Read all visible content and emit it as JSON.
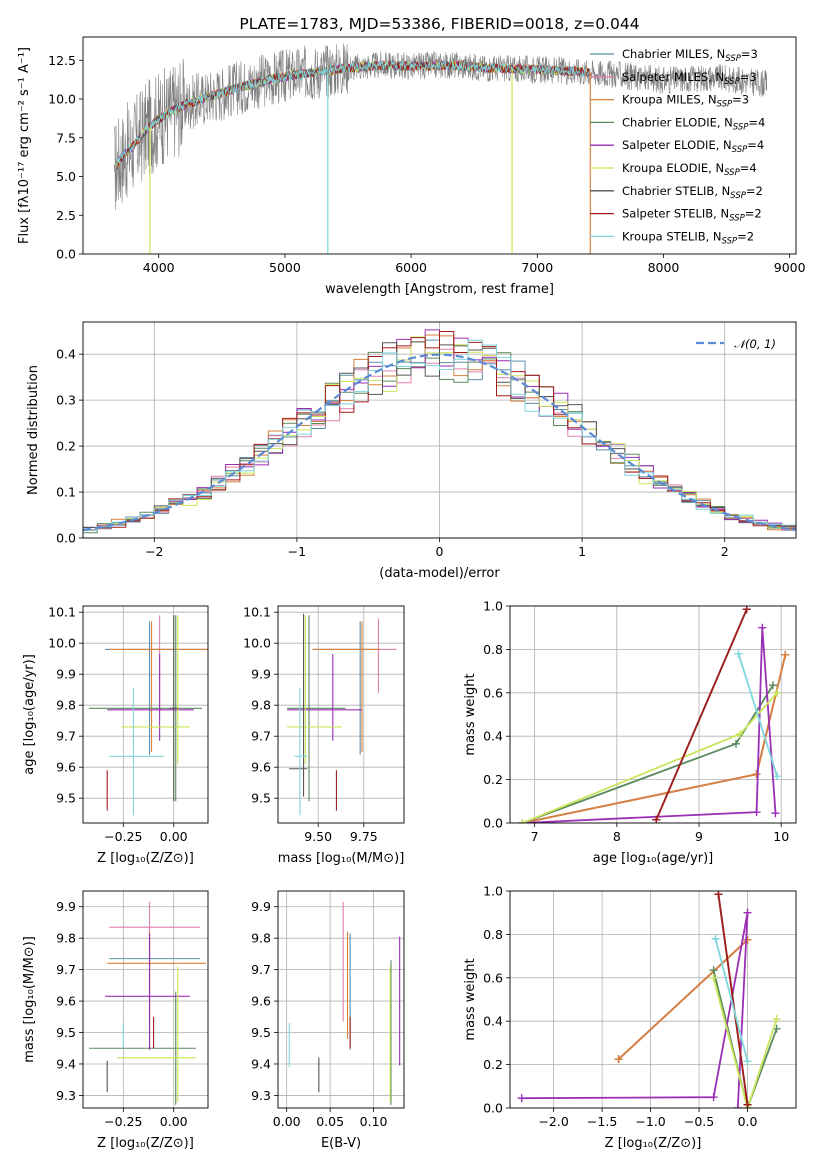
{
  "colors": {
    "chab_miles": "#5b8fa8",
    "salp_miles": "#e07fb0",
    "krou_miles": "#d9813a",
    "chab_elodie": "#5a8a5e",
    "salp_elodie": "#9a2fb5",
    "krou_elodie": "#c8e65a",
    "chab_stelib": "#555555",
    "salp_stelib": "#a21c1c",
    "krou_stelib": "#7fd6dc",
    "gauss": "#5b8bd6",
    "grid": "#b0b0b0"
  },
  "chart_data": [
    {
      "id": "spectrum",
      "type": "line",
      "title": "PLATE=1783, MJD=53386, FIBERID=0018, z=0.044",
      "xlabel": "wavelength [Angstrom, rest frame]",
      "ylabel": "Flux [fλ10⁻¹⁷ erg cm⁻² s⁻¹ A⁻¹]",
      "xlim": [
        3400,
        9050
      ],
      "ylim": [
        0,
        14
      ],
      "xticks": [
        4000,
        5000,
        6000,
        7000,
        8000,
        9000
      ],
      "yticks": [
        "0.0",
        "2.5",
        "5.0",
        "7.5",
        "10.0",
        "12.5"
      ],
      "legend_position": "top-right",
      "legend": [
        {
          "label": "Chabrier MILES, N",
          "sub": "SSP",
          "suffix": "=3",
          "color": "chab_miles"
        },
        {
          "label": "Salpeter MILES, N",
          "sub": "SSP",
          "suffix": "=3",
          "color": "salp_miles"
        },
        {
          "label": "Kroupa MILES, N",
          "sub": "SSP",
          "suffix": "=3",
          "color": "krou_miles"
        },
        {
          "label": "Chabrier ELODIE, N",
          "sub": "SSP",
          "suffix": "=4",
          "color": "chab_elodie"
        },
        {
          "label": "Salpeter ELODIE, N",
          "sub": "SSP",
          "suffix": "=4",
          "color": "salp_elodie"
        },
        {
          "label": "Kroupa ELODIE, N",
          "sub": "SSP",
          "suffix": "=4",
          "color": "krou_elodie"
        },
        {
          "label": "Chabrier STELIB, N",
          "sub": "SSP",
          "suffix": "=2",
          "color": "chab_stelib"
        },
        {
          "label": "Salpeter STELIB, N",
          "sub": "SSP",
          "suffix": "=2",
          "color": "salp_stelib"
        },
        {
          "label": "Kroupa STELIB, N",
          "sub": "SSP",
          "suffix": "=2",
          "color": "krou_stelib"
        }
      ],
      "continuum": [
        [
          3650,
          5.5
        ],
        [
          3700,
          6.2
        ],
        [
          3800,
          7.0
        ],
        [
          3900,
          8.0
        ],
        [
          4000,
          8.7
        ],
        [
          4100,
          9.2
        ],
        [
          4200,
          9.6
        ],
        [
          4300,
          9.9
        ],
        [
          4500,
          10.4
        ],
        [
          4700,
          10.9
        ],
        [
          4900,
          11.3
        ],
        [
          5100,
          11.6
        ],
        [
          5300,
          11.8
        ],
        [
          5500,
          12.0
        ],
        [
          5800,
          12.2
        ],
        [
          6000,
          12.1
        ],
        [
          6300,
          12.2
        ],
        [
          6600,
          12.0
        ],
        [
          7000,
          11.9
        ],
        [
          7300,
          11.8
        ],
        [
          7420,
          11.7
        ],
        [
          7600,
          11.6
        ],
        [
          8000,
          11.2
        ],
        [
          8400,
          11.4
        ],
        [
          8800,
          11.0
        ]
      ],
      "model_extent": [
        3650,
        7420
      ],
      "data_extent": [
        3650,
        8820
      ],
      "dips": [
        {
          "x": 5340,
          "color": "krou_stelib"
        },
        {
          "x": 6800,
          "color": "krou_elodie"
        },
        {
          "x": 7420,
          "color": "krou_miles"
        },
        {
          "x": 3930,
          "color": "krou_elodie"
        }
      ]
    },
    {
      "id": "residuals",
      "type": "histogram",
      "xlabel": "(data-model)/error",
      "ylabel": "Normed distribution",
      "xlim": [
        -2.5,
        2.5
      ],
      "ylim": [
        0,
        0.47
      ],
      "xticks": [
        "−2",
        "−1",
        "0",
        "1",
        "2"
      ],
      "yticks": [
        "0.0",
        "0.1",
        "0.2",
        "0.3",
        "0.4"
      ],
      "legend_position": "top-right",
      "gauss_label": "𝒩(0, 1)",
      "bins": 50
    },
    {
      "id": "age_vs_z",
      "type": "errorbar",
      "xlabel": "Z [log₁₀(Z/Z⊙)]",
      "ylabel": "age  [log₁₀(age/yr)]",
      "xlim": [
        -0.45,
        0.17
      ],
      "ylim": [
        9.42,
        10.12
      ],
      "xticks": [
        "−0.25",
        "0.00"
      ],
      "yticks": [
        "9.5",
        "9.6",
        "9.7",
        "9.8",
        "9.9",
        "10.0",
        "10.1"
      ],
      "points": [
        {
          "c": "chab_miles",
          "x": -0.12,
          "y": 9.98,
          "xerr": [
            0.22,
            0.32
          ],
          "yerr": [
            0.34,
            0.09
          ]
        },
        {
          "c": "salp_miles",
          "x": -0.07,
          "y": 9.98,
          "xerr": [
            0.18,
            0.28
          ],
          "yerr": [
            0.2,
            0.11
          ]
        },
        {
          "c": "krou_miles",
          "x": -0.11,
          "y": 9.98,
          "xerr": [
            0.21,
            0.32
          ],
          "yerr": [
            0.33,
            0.09
          ]
        },
        {
          "c": "chab_elodie",
          "x": 0.01,
          "y": 9.79,
          "xerr": [
            0.43,
            0.13
          ],
          "yerr": [
            0.3,
            0.3
          ]
        },
        {
          "c": "salp_elodie",
          "x": -0.07,
          "y": 9.785,
          "xerr": [
            0.26,
            0.17
          ],
          "yerr": [
            0.1,
            0.18
          ]
        },
        {
          "c": "krou_elodie",
          "x": 0.02,
          "y": 9.73,
          "xerr": [
            0.28,
            0.06
          ],
          "yerr": [
            0.12,
            0.36
          ]
        },
        {
          "c": "chab_stelib",
          "x": 0.0,
          "y": 9.79,
          "xerr": [
            0.02,
            0.02
          ],
          "yerr": [
            0.3,
            0.3
          ]
        },
        {
          "c": "salp_stelib",
          "x": -0.33,
          "y": 9.53,
          "xerr": [
            0.0,
            0.0
          ],
          "yerr": [
            0.07,
            0.06
          ]
        },
        {
          "c": "krou_stelib",
          "x": -0.2,
          "y": 9.635,
          "xerr": [
            0.12,
            0.15
          ],
          "yerr": [
            0.19,
            0.22
          ]
        }
      ]
    },
    {
      "id": "age_vs_mass",
      "type": "errorbar",
      "xlabel": "mass [log₁₀(M/M⊙)]",
      "ylabel": "",
      "xlim": [
        9.28,
        9.97
      ],
      "ylim": [
        9.42,
        10.12
      ],
      "xticks": [
        "9.50",
        "9.75"
      ],
      "yticks": [
        "9.5",
        "9.6",
        "9.7",
        "9.8",
        "9.9",
        "10.0",
        "10.1"
      ],
      "points": [
        {
          "c": "chab_miles",
          "x": 9.73,
          "y": 9.98,
          "xerr": [
            0.26,
            0.1
          ],
          "yerr": [
            0.34,
            0.09
          ]
        },
        {
          "c": "salp_miles",
          "x": 9.83,
          "y": 9.98,
          "xerr": [
            0.3,
            0.1
          ],
          "yerr": [
            0.14,
            0.1
          ]
        },
        {
          "c": "krou_miles",
          "x": 9.74,
          "y": 9.98,
          "xerr": [
            0.27,
            0.1
          ],
          "yerr": [
            0.33,
            0.09
          ]
        },
        {
          "c": "chab_elodie",
          "x": 9.45,
          "y": 9.79,
          "xerr": [
            0.12,
            0.2
          ],
          "yerr": [
            0.3,
            0.3
          ]
        },
        {
          "c": "salp_elodie",
          "x": 9.58,
          "y": 9.785,
          "xerr": [
            0.25,
            0.16
          ],
          "yerr": [
            0.1,
            0.18
          ]
        },
        {
          "c": "krou_elodie",
          "x": 9.43,
          "y": 9.73,
          "xerr": [
            0.1,
            0.2
          ],
          "yerr": [
            0.12,
            0.36
          ]
        },
        {
          "c": "chab_stelib",
          "x": 9.42,
          "y": 9.595,
          "xerr": [
            0.08,
            0.02
          ],
          "yerr": [
            0.09,
            0.5
          ]
        },
        {
          "c": "salp_stelib",
          "x": 9.6,
          "y": 9.53,
          "xerr": [
            0.0,
            0.0
          ],
          "yerr": [
            0.07,
            0.06
          ]
        },
        {
          "c": "krou_stelib",
          "x": 9.4,
          "y": 9.635,
          "xerr": [
            0.03,
            0.04
          ],
          "yerr": [
            0.19,
            0.22
          ]
        }
      ]
    },
    {
      "id": "weight_vs_age",
      "type": "line",
      "xlabel": "age  [log₁₀(age/yr)]",
      "ylabel": "mass weight",
      "xlim": [
        6.7,
        10.18
      ],
      "ylim": [
        0,
        1.0
      ],
      "xticks": [
        "7",
        "8",
        "9",
        "10"
      ],
      "yticks": [
        "0.0",
        "0.2",
        "0.4",
        "0.6",
        "0.8",
        "1.0"
      ],
      "series": [
        {
          "c": "chab_miles",
          "x": [
            6.85,
            9.7,
            10.05
          ],
          "y": [
            0.0,
            0.225,
            0.775
          ]
        },
        {
          "c": "salp_miles",
          "x": [
            6.85,
            9.7,
            10.05
          ],
          "y": [
            0.0,
            0.225,
            0.775
          ]
        },
        {
          "c": "krou_miles",
          "x": [
            6.85,
            9.7,
            10.05
          ],
          "y": [
            0.0,
            0.225,
            0.775
          ]
        },
        {
          "c": "chab_elodie",
          "x": [
            6.85,
            9.45,
            9.9
          ],
          "y": [
            0.0,
            0.365,
            0.635
          ]
        },
        {
          "c": "salp_elodie",
          "x": [
            6.85,
            9.7,
            9.77,
            9.93
          ],
          "y": [
            0.0,
            0.05,
            0.9,
            0.045
          ]
        },
        {
          "c": "krou_elodie",
          "x": [
            6.85,
            9.5,
            9.95
          ],
          "y": [
            0.0,
            0.41,
            0.6
          ]
        },
        {
          "c": "chab_stelib",
          "x": [
            8.48,
            9.58
          ],
          "y": [
            0.015,
            0.985
          ]
        },
        {
          "c": "salp_stelib",
          "x": [
            8.48,
            9.58
          ],
          "y": [
            0.015,
            0.985
          ]
        },
        {
          "c": "krou_stelib",
          "x": [
            9.48,
            9.95
          ],
          "y": [
            0.78,
            0.215
          ]
        }
      ]
    },
    {
      "id": "mass_vs_z",
      "type": "errorbar",
      "xlabel": "Z [log₁₀(Z/Z⊙)]",
      "ylabel": "mass [log₁₀(M/M⊙)]",
      "xlim": [
        -0.45,
        0.17
      ],
      "ylim": [
        9.26,
        9.95
      ],
      "xticks": [
        "−0.25",
        "0.00"
      ],
      "yticks": [
        "9.3",
        "9.4",
        "9.5",
        "9.6",
        "9.7",
        "9.8",
        "9.9"
      ],
      "points": [
        {
          "c": "chab_miles",
          "x": -0.12,
          "y": 9.735,
          "xerr": [
            0.2,
            0.25
          ],
          "yerr": [
            0.29,
            0.08
          ]
        },
        {
          "c": "salp_miles",
          "x": -0.12,
          "y": 9.835,
          "xerr": [
            0.2,
            0.25
          ],
          "yerr": [
            0.3,
            0.08
          ]
        },
        {
          "c": "krou_miles",
          "x": -0.12,
          "y": 9.72,
          "xerr": [
            0.21,
            0.28
          ],
          "yerr": [
            0.27,
            0.1
          ]
        },
        {
          "c": "chab_elodie",
          "x": 0.01,
          "y": 9.45,
          "xerr": [
            0.43,
            0.1
          ],
          "yerr": [
            0.18,
            0.18
          ]
        },
        {
          "c": "salp_elodie",
          "x": -0.12,
          "y": 9.615,
          "xerr": [
            0.22,
            0.2
          ],
          "yerr": [
            0.17,
            0.2
          ]
        },
        {
          "c": "krou_elodie",
          "x": 0.02,
          "y": 9.42,
          "xerr": [
            0.3,
            0.09
          ],
          "yerr": [
            0.14,
            0.29
          ]
        },
        {
          "c": "chab_stelib",
          "x": -0.33,
          "y": 9.36,
          "xerr": [
            0.0,
            0.0
          ],
          "yerr": [
            0.05,
            0.05
          ]
        },
        {
          "c": "salp_stelib",
          "x": -0.1,
          "y": 9.5,
          "xerr": [
            0.0,
            0.0
          ],
          "yerr": [
            0.05,
            0.05
          ]
        },
        {
          "c": "krou_stelib",
          "x": -0.25,
          "y": 9.49,
          "xerr": [
            0.0,
            0.0
          ],
          "yerr": [
            0.04,
            0.04
          ]
        }
      ]
    },
    {
      "id": "mass_vs_ebv",
      "type": "errorbar",
      "xlabel": "E(B-V)",
      "ylabel": "",
      "xlim": [
        -0.01,
        0.135
      ],
      "ylim": [
        9.26,
        9.95
      ],
      "xticks": [
        "0.00",
        "0.05",
        "0.10"
      ],
      "yticks": [
        "9.3",
        "9.4",
        "9.5",
        "9.6",
        "9.7",
        "9.8",
        "9.9"
      ],
      "points": [
        {
          "c": "chab_miles",
          "x": 0.073,
          "y": 9.735,
          "xerr": [
            0,
            0
          ],
          "yerr": [
            0.29,
            0.08
          ]
        },
        {
          "c": "salp_miles",
          "x": 0.065,
          "y": 9.835,
          "xerr": [
            0,
            0
          ],
          "yerr": [
            0.3,
            0.08
          ]
        },
        {
          "c": "krou_miles",
          "x": 0.07,
          "y": 9.72,
          "xerr": [
            0,
            0
          ],
          "yerr": [
            0.24,
            0.1
          ]
        },
        {
          "c": "chab_elodie",
          "x": 0.12,
          "y": 9.45,
          "xerr": [
            0,
            0
          ],
          "yerr": [
            0.18,
            0.28
          ]
        },
        {
          "c": "salp_elodie",
          "x": 0.13,
          "y": 9.615,
          "xerr": [
            0,
            0
          ],
          "yerr": [
            0.22,
            0.19
          ]
        },
        {
          "c": "krou_elodie",
          "x": 0.119,
          "y": 9.42,
          "xerr": [
            0,
            0
          ],
          "yerr": [
            0.14,
            0.29
          ]
        },
        {
          "c": "chab_stelib",
          "x": 0.037,
          "y": 9.36,
          "xerr": [
            0,
            0
          ],
          "yerr": [
            0.05,
            0.06
          ]
        },
        {
          "c": "salp_stelib",
          "x": 0.073,
          "y": 9.5,
          "xerr": [
            0,
            0
          ],
          "yerr": [
            0.05,
            0.05
          ]
        },
        {
          "c": "krou_stelib",
          "x": 0.003,
          "y": 9.46,
          "xerr": [
            0,
            0
          ],
          "yerr": [
            0.07,
            0.07
          ]
        }
      ]
    },
    {
      "id": "weight_vs_z",
      "type": "line",
      "xlabel": "Z [log₁₀(Z/Z⊙)]",
      "ylabel": "mass weight",
      "xlim": [
        -2.45,
        0.5
      ],
      "ylim": [
        0,
        1.0
      ],
      "xticks": [
        "−2.0",
        "−1.5",
        "−1.0",
        "−0.5",
        "0.0"
      ],
      "yticks": [
        "0.0",
        "0.2",
        "0.4",
        "0.6",
        "0.8",
        "1.0"
      ],
      "series": [
        {
          "c": "chab_miles",
          "x": [
            -1.33,
            0.0
          ],
          "y": [
            0.225,
            0.775
          ]
        },
        {
          "c": "salp_miles",
          "x": [
            -1.33,
            0.0
          ],
          "y": [
            0.225,
            0.775
          ]
        },
        {
          "c": "krou_miles",
          "x": [
            -1.33,
            0.0
          ],
          "y": [
            0.225,
            0.775
          ]
        },
        {
          "c": "chab_elodie",
          "x": [
            -0.35,
            0.0,
            0.3
          ],
          "y": [
            0.635,
            0.0,
            0.365
          ]
        },
        {
          "c": "salp_elodie",
          "x": [
            -2.33,
            -0.35,
            0.0,
            -0.1
          ],
          "y": [
            0.045,
            0.05,
            0.9,
            0.0
          ]
        },
        {
          "c": "krou_elodie",
          "x": [
            -0.35,
            0.0,
            0.3
          ],
          "y": [
            0.6,
            0.0,
            0.41
          ]
        },
        {
          "c": "chab_stelib",
          "x": [
            -0.3,
            0.0
          ],
          "y": [
            0.985,
            0.015
          ]
        },
        {
          "c": "salp_stelib",
          "x": [
            -0.3,
            0.0
          ],
          "y": [
            0.985,
            0.015
          ]
        },
        {
          "c": "krou_stelib",
          "x": [
            -0.33,
            0.0
          ],
          "y": [
            0.78,
            0.215
          ]
        }
      ]
    }
  ]
}
